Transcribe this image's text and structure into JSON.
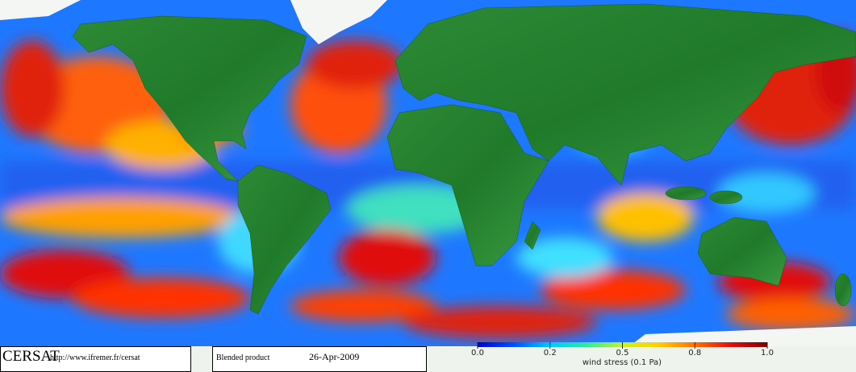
{
  "footer": {
    "logo": "CERSAT",
    "url": "http://www.ifremer.fr/cersat",
    "product": "Blended product",
    "date": "26-Apr-2009"
  },
  "colorbar": {
    "label": "wind stress (0.1 Pa)",
    "ticks": [
      {
        "value": 0,
        "label": "0.0"
      },
      0.2,
      0.5,
      0.8,
      {
        "value": 1,
        "label": "1.0"
      }
    ],
    "colors": [
      "#0000c8",
      "#0050ff",
      "#00c8ff",
      "#30e8a0",
      "#c8f030",
      "#ffd000",
      "#ff7000",
      "#e01010",
      "#800000"
    ]
  }
}
